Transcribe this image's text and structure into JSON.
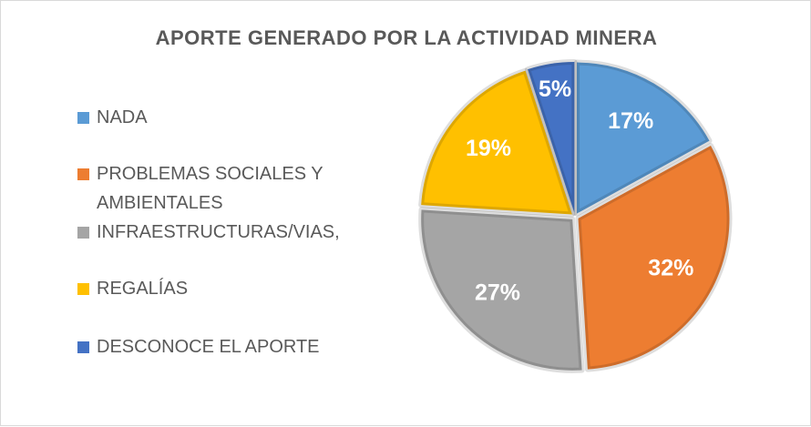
{
  "chart_data": {
    "type": "pie",
    "title": "APORTE GENERADO POR LA ACTIVIDAD MINERA",
    "categories": [
      "NADA",
      "PROBLEMAS SOCIALES Y AMBIENTALES",
      "INFRAESTRUCTURAS/VIAS,",
      "REGALÍAS",
      "DESCONOCE EL APORTE"
    ],
    "values": [
      17,
      32,
      27,
      19,
      5
    ],
    "value_labels": [
      "17%",
      "32%",
      "27%",
      "19%",
      "5%"
    ],
    "colors": [
      "#5B9BD5",
      "#ED7D31",
      "#A5A5A5",
      "#FFC000",
      "#4472C4"
    ],
    "legend": "left"
  }
}
